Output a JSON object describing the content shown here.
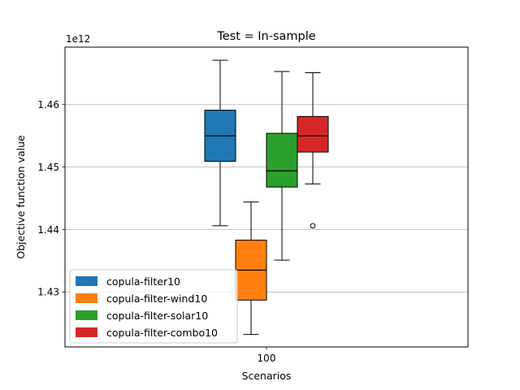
{
  "chart_data": {
    "type": "box",
    "title": "Test = In-sample",
    "xlabel": "Scenarios",
    "ylabel": "Objective function value",
    "y_offset_label": "1e12",
    "categories": [
      "100"
    ],
    "ylim": [
      1.4212,
      1.4692
    ],
    "yticks": [
      "1.43",
      "1.44",
      "1.45",
      "1.46"
    ],
    "ytick_values": [
      1.43,
      1.44,
      1.45,
      1.46
    ],
    "grid": "y",
    "legend_position": "lower-left",
    "series": [
      {
        "name": "copula-filter10",
        "color": "#1f77b4",
        "whisker_low": 1.4406,
        "q1": 1.4509,
        "median": 1.455,
        "q3": 1.4591,
        "whisker_high": 1.4671,
        "outliers": []
      },
      {
        "name": "copula-filter-wind10",
        "color": "#ff7f0e",
        "whisker_low": 1.4232,
        "q1": 1.4287,
        "median": 1.4335,
        "q3": 1.4383,
        "whisker_high": 1.4444,
        "outliers": []
      },
      {
        "name": "copula-filter-solar10",
        "color": "#2ca02c",
        "whisker_low": 1.4351,
        "q1": 1.4468,
        "median": 1.4494,
        "q3": 1.4554,
        "whisker_high": 1.4653,
        "outliers": []
      },
      {
        "name": "copula-filter-combo10",
        "color": "#d62728",
        "whisker_low": 1.4473,
        "q1": 1.4524,
        "median": 1.455,
        "q3": 1.4581,
        "whisker_high": 1.4651,
        "outliers": [
          1.4406
        ]
      }
    ]
  }
}
